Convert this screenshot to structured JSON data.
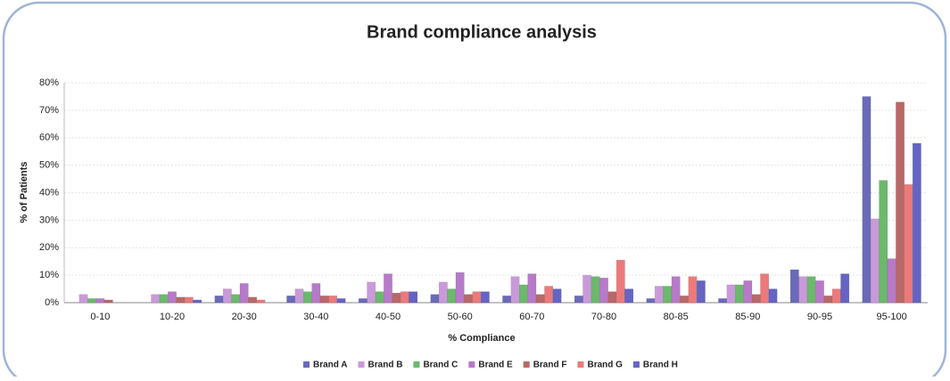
{
  "chart_data": {
    "type": "bar",
    "title": "Brand compliance analysis",
    "xlabel": "% Compliance",
    "ylabel": "% of Patients",
    "categories": [
      "0-10",
      "10-20",
      "20-30",
      "30-40",
      "40-50",
      "50-60",
      "60-70",
      "70-80",
      "80-85",
      "85-90",
      "90-95",
      "95-100"
    ],
    "series": [
      {
        "name": "Brand A",
        "color": "#6a6ab8",
        "values": [
          0,
          0,
          2.5,
          2.5,
          1.5,
          3,
          2.5,
          2.5,
          1.5,
          1.5,
          12,
          75
        ]
      },
      {
        "name": "Brand B",
        "color": "#c99ad9",
        "values": [
          3,
          3,
          5,
          5,
          7.5,
          7.5,
          9.5,
          10,
          6,
          6.5,
          9.5,
          30.5
        ]
      },
      {
        "name": "Brand C",
        "color": "#6cb86c",
        "values": [
          1.5,
          3,
          3,
          4,
          4,
          5,
          6.5,
          9.5,
          6,
          6.5,
          9.5,
          44.5
        ]
      },
      {
        "name": "Brand E",
        "color": "#b77ac8",
        "values": [
          1.5,
          4,
          7,
          7,
          10.5,
          11,
          10.5,
          9,
          9.5,
          8,
          8,
          16
        ]
      },
      {
        "name": "Brand F",
        "color": "#b86868",
        "values": [
          1,
          2,
          2,
          2.5,
          3.5,
          3,
          3,
          4,
          2.5,
          3,
          2.5,
          73
        ]
      },
      {
        "name": "Brand G",
        "color": "#ec7a7a",
        "values": [
          0,
          2,
          1,
          2.5,
          4,
          4,
          6,
          15.5,
          9.5,
          10.5,
          5,
          43
        ]
      },
      {
        "name": "Brand H",
        "color": "#6464c4",
        "values": [
          0,
          1,
          0,
          1.5,
          4,
          4,
          5,
          5,
          8,
          5,
          10.5,
          58
        ]
      }
    ],
    "ylim": [
      0,
      80
    ],
    "yticks": [
      {
        "value": 0,
        "label": "0%"
      },
      {
        "value": 10,
        "label": "10%"
      },
      {
        "value": 20,
        "label": "20%"
      },
      {
        "value": 30,
        "label": "30%"
      },
      {
        "value": 40,
        "label": "40%"
      },
      {
        "value": 50,
        "label": "50%"
      },
      {
        "value": 60,
        "label": "60%"
      },
      {
        "value": 70,
        "label": "70%"
      },
      {
        "value": 80,
        "label": "80%"
      }
    ],
    "grid": true,
    "legend": "bottom"
  }
}
